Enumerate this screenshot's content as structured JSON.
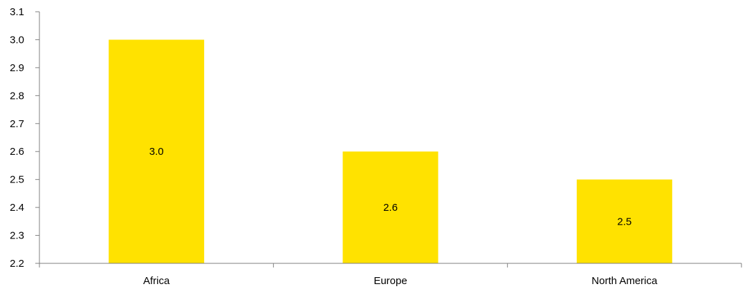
{
  "chart_data": {
    "type": "bar",
    "categories": [
      "Africa",
      "Europe",
      "North America"
    ],
    "values": [
      3.0,
      2.6,
      2.5
    ],
    "data_labels": [
      "3.0",
      "2.6",
      "2.5"
    ],
    "ylim": [
      2.2,
      3.1
    ],
    "yticks": [
      "2.2",
      "2.3",
      "2.4",
      "2.5",
      "2.6",
      "2.7",
      "2.8",
      "2.9",
      "3.0",
      "3.1"
    ],
    "title": "",
    "xlabel": "",
    "ylabel": "",
    "grid": false,
    "legend": "none",
    "colors": {
      "bar": "#FFE200",
      "axis": "#7f7f7f",
      "text": "#000000"
    }
  }
}
